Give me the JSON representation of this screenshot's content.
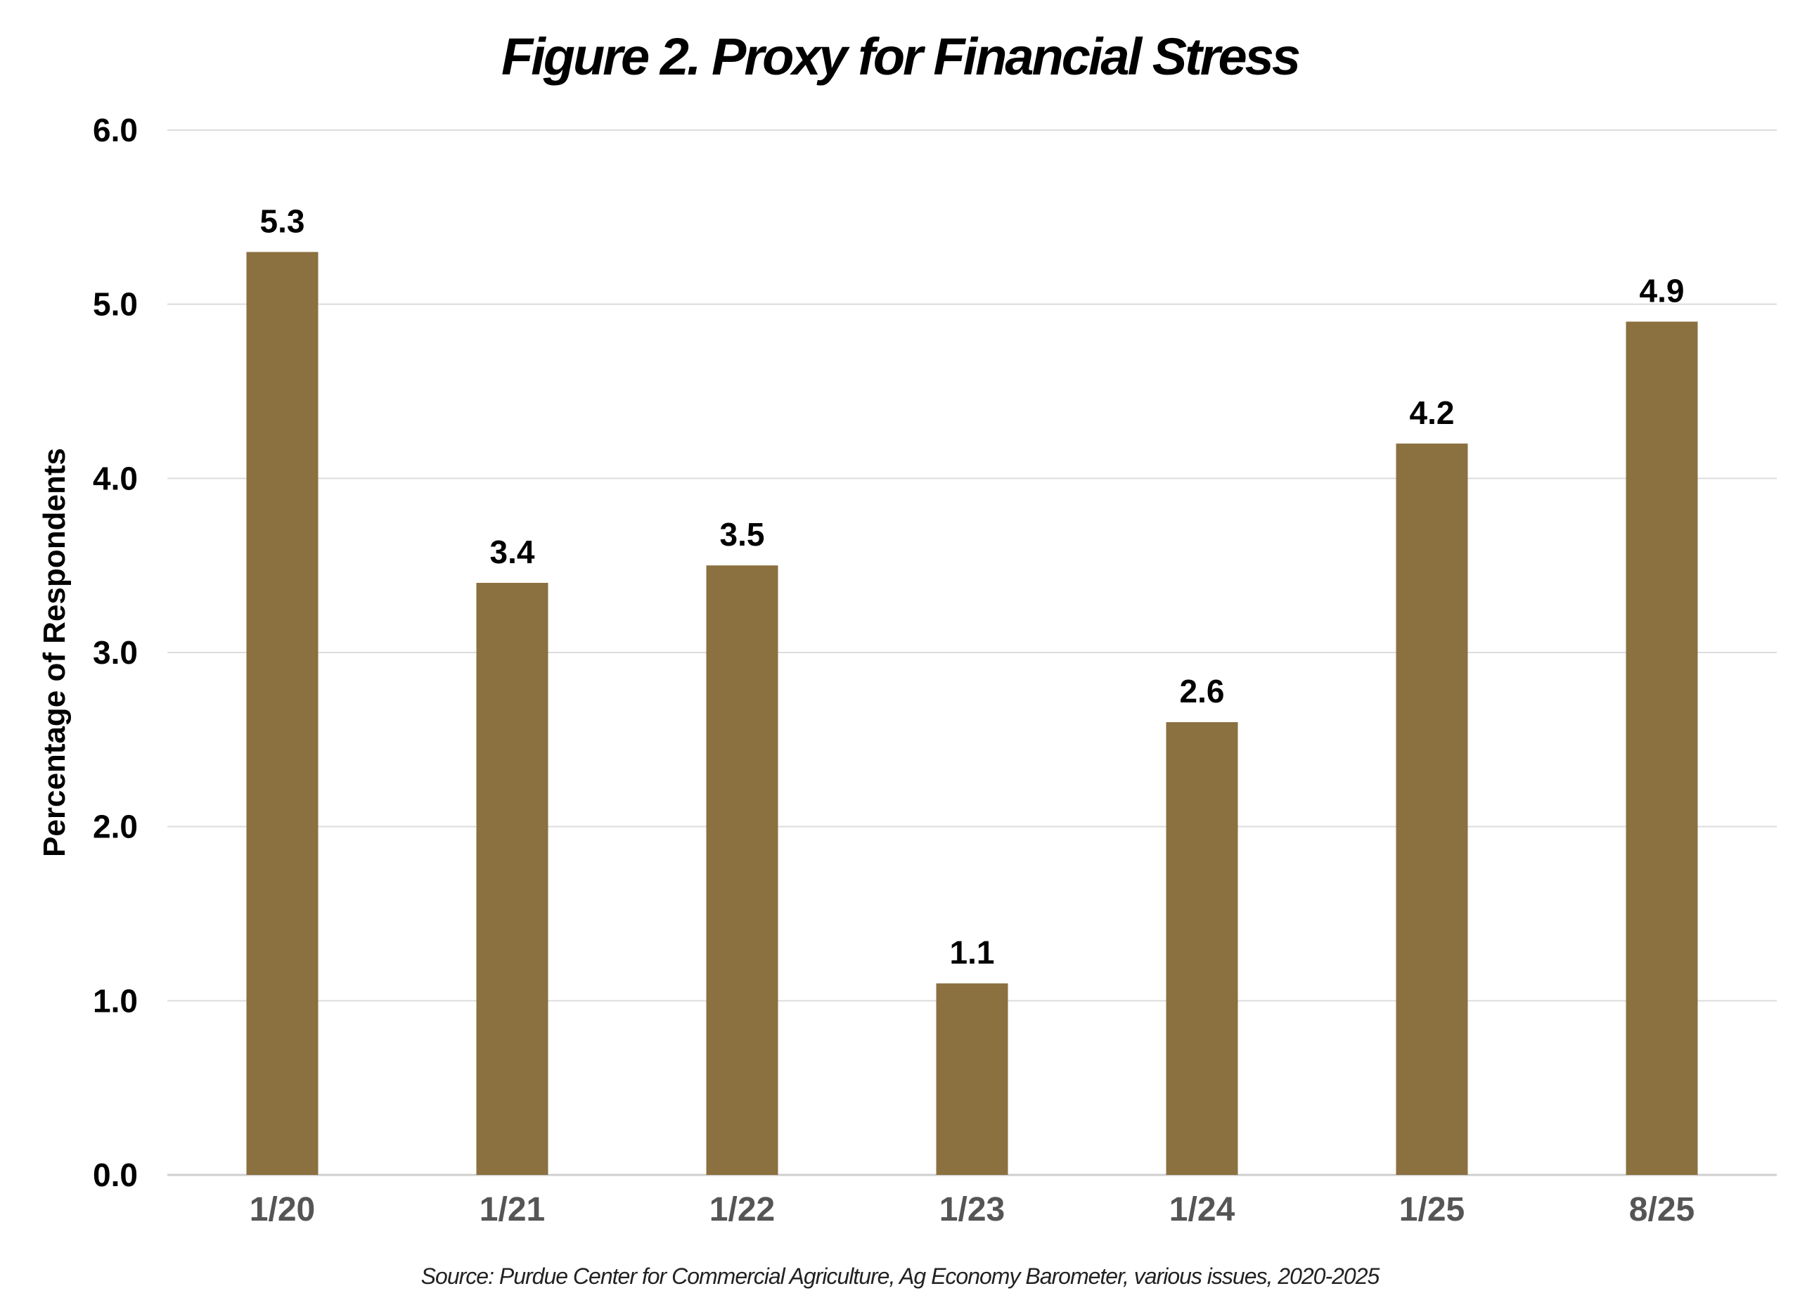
{
  "chart_data": {
    "type": "bar",
    "title": "Figure 2.  Proxy for Financial Stress",
    "xlabel": "",
    "ylabel": "Percentage of Respondents",
    "categories": [
      "1/20",
      "1/21",
      "1/22",
      "1/23",
      "1/24",
      "1/25",
      "8/25"
    ],
    "values": [
      5.3,
      3.4,
      3.5,
      1.1,
      2.6,
      4.2,
      4.9
    ],
    "data_labels": [
      "5.3",
      "3.4",
      "3.5",
      "1.1",
      "2.6",
      "4.2",
      "4.9"
    ],
    "ylim": [
      0,
      6
    ],
    "yticks": [
      "0.0",
      "1.0",
      "2.0",
      "3.0",
      "4.0",
      "5.0",
      "6.0"
    ],
    "grid": true,
    "bar_color": "#8B7040",
    "source": "Source: Purdue Center for Commercial Agriculture, Ag Economy Barometer, various issues, 2020-2025"
  }
}
